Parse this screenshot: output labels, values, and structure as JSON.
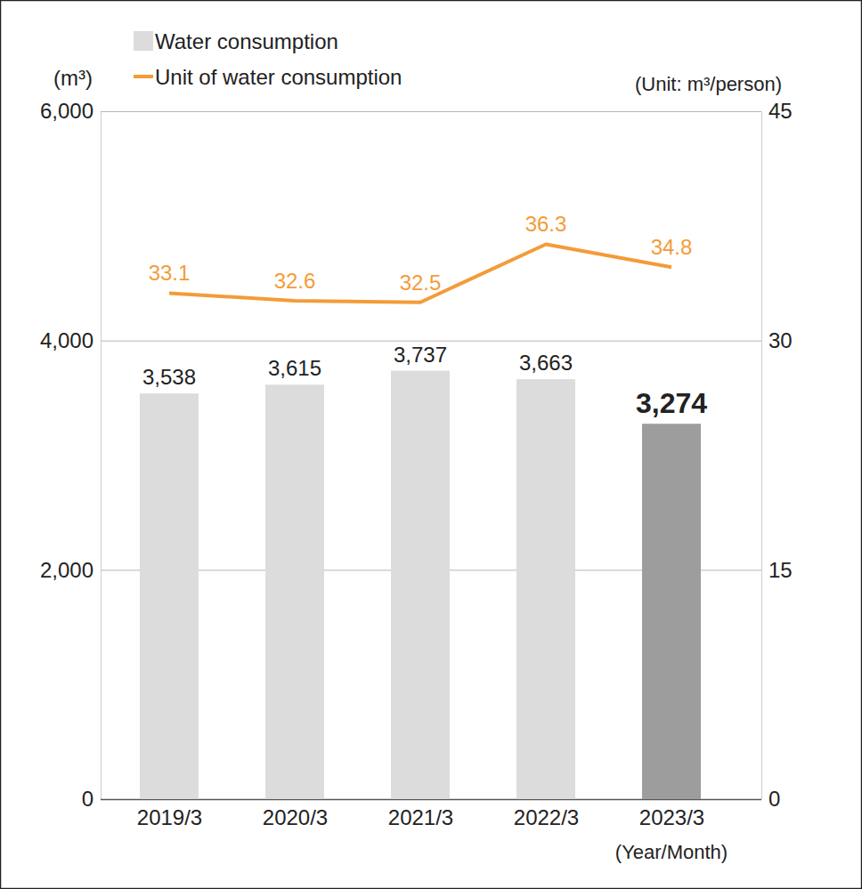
{
  "chart_data": {
    "type": "bar",
    "categories": [
      "2019/3",
      "2020/3",
      "2021/3",
      "2022/3",
      "2023/3"
    ],
    "x_label": "(Year/Month)",
    "y_label": "(m³)",
    "y2_label": "(Unit: m³/person)",
    "ylim": [
      0,
      6000
    ],
    "yticks": [
      0,
      {
        "value": 2000,
        "label": "2,000"
      },
      {
        "value": 4000,
        "label": "4,000"
      },
      {
        "value": 6000,
        "label": "6,000"
      }
    ],
    "y2lim": [
      0,
      45
    ],
    "y2ticks": [
      0,
      15,
      30,
      45
    ],
    "grid": true,
    "legend": "upper left",
    "data_labels": true,
    "series": [
      {
        "name": "Water consumption",
        "type": "bar",
        "colors": [
          "#dcdcdc",
          "#dcdcdc",
          "#dcdcdc",
          "#dcdcdc",
          "#9d9d9d"
        ],
        "values": [
          3538,
          3615,
          3737,
          3663,
          3274
        ],
        "value_labels": [
          "3,538",
          "3,615",
          "3,737",
          "3,663",
          "3,274"
        ]
      },
      {
        "name": "Unit of water consumption",
        "type": "line",
        "axis": "y2",
        "color": "#f39c38",
        "values": [
          33.1,
          32.6,
          32.5,
          36.3,
          34.8
        ]
      }
    ]
  }
}
